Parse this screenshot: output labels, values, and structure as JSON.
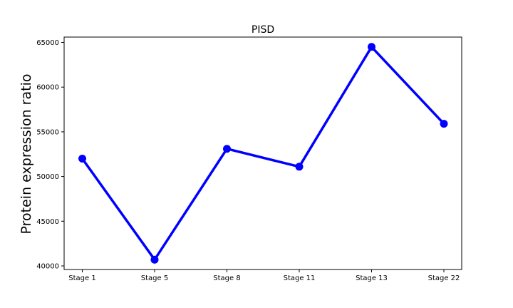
{
  "chart_data": {
    "type": "line",
    "title": "PISD",
    "xlabel": "",
    "ylabel": "Protein expression ratio",
    "categories": [
      "Stage 1",
      "Stage 5",
      "Stage 8",
      "Stage 11",
      "Stage 13",
      "Stage 22"
    ],
    "series": [
      {
        "values": [
          52000,
          40700,
          53100,
          51100,
          64500,
          55900
        ]
      }
    ],
    "y_ticks": [
      40000,
      45000,
      50000,
      55000,
      60000,
      65000
    ],
    "ylim": [
      39600,
      65600
    ],
    "grid": false,
    "line_color": "#0000ff",
    "marker": "circle"
  }
}
